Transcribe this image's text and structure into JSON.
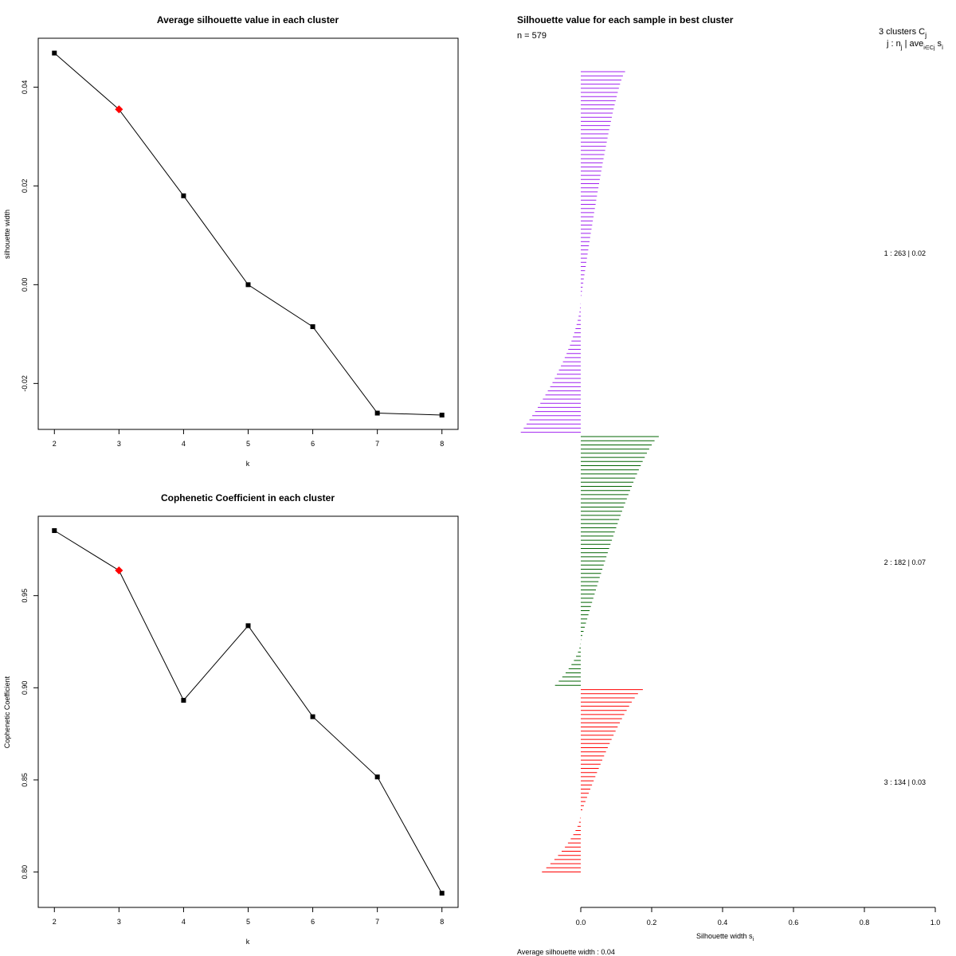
{
  "chart_data": [
    {
      "type": "line",
      "title": "Average silhouette value in each cluster",
      "xlabel": "k",
      "ylabel": "silhouette width",
      "x": [
        2,
        3,
        4,
        5,
        6,
        7,
        8
      ],
      "y": [
        0.0469,
        0.0355,
        0.018,
        0.0,
        -0.0085,
        -0.026,
        -0.0264
      ],
      "highlight_x": 3,
      "highlight_color": "#ff0000",
      "xticks": [
        "2",
        "3",
        "4",
        "5",
        "6",
        "7",
        "8"
      ],
      "yticks": [
        {
          "value": 0.04,
          "label": "0.04"
        },
        {
          "value": 0.02,
          "label": "0.02"
        },
        {
          "value": 0.0,
          "label": "0.00"
        },
        {
          "value": -0.02,
          "label": "-0.02"
        }
      ],
      "xlim": [
        1.75,
        8.25
      ],
      "ylim": [
        -0.0293,
        0.0499
      ]
    },
    {
      "type": "line",
      "title": "Cophenetic Coefficient in each cluster",
      "xlabel": "k",
      "ylabel": "Cophenetic Coefficient",
      "x": [
        2,
        3,
        4,
        5,
        6,
        7,
        8
      ],
      "y": [
        0.9853,
        0.9637,
        0.8932,
        0.9337,
        0.8843,
        0.8516,
        0.7885
      ],
      "highlight_x": 3,
      "highlight_color": "#ff0000",
      "xticks": [
        "2",
        "3",
        "4",
        "5",
        "6",
        "7",
        "8"
      ],
      "yticks": [
        {
          "value": 0.95,
          "label": "0.95"
        },
        {
          "value": 0.9,
          "label": "0.90"
        },
        {
          "value": 0.85,
          "label": "0.85"
        },
        {
          "value": 0.8,
          "label": "0.80"
        }
      ],
      "xlim": [
        1.75,
        8.25
      ],
      "ylim": [
        0.7808,
        0.9931
      ]
    },
    {
      "type": "bar",
      "orientation": "horizontal",
      "title": "Silhouette value for each sample in best cluster",
      "n_label": "n = 579",
      "legend_header_line1": "3  clusters  C",
      "legend_header_sub1": "j",
      "legend_header_line2": "j :  n",
      "legend_header_sub2": "j",
      "legend_header_line2b": " | ave",
      "legend_header_sub3": "i∈Cj",
      "legend_header_line2c": "  s",
      "legend_header_sub4": "i",
      "xlabel": "Silhouette width s",
      "xlabel_sub": "i",
      "footer": "Average silhouette width :  0.04",
      "xlim": [
        0.0,
        1.0
      ],
      "xticks": [
        "0.0",
        "0.2",
        "0.4",
        "0.6",
        "0.8",
        "1.0"
      ],
      "clusters": [
        {
          "id": 1,
          "n": 263,
          "avg": 0.02,
          "label": "1 :   263  |  0.02",
          "color": "#a020f0",
          "max": 0.125,
          "min": -0.175,
          "n_positive": 165
        },
        {
          "id": 2,
          "n": 182,
          "avg": 0.07,
          "label": "2 :   182  |  0.07",
          "color": "#006400",
          "max": 0.22,
          "min": -0.08,
          "n_positive": 148
        },
        {
          "id": 3,
          "n": 134,
          "avg": 0.03,
          "label": "3 :   134  |  0.03",
          "color": "#ff0000",
          "max": 0.175,
          "min": -0.118,
          "n_positive": 90
        }
      ]
    }
  ]
}
